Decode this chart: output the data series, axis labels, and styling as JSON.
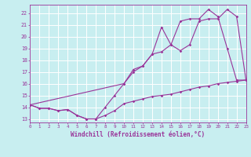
{
  "xlabel": "Windchill (Refroidissement éolien,°C)",
  "bg_color": "#c8eef0",
  "line_color": "#993399",
  "grid_color": "#ffffff",
  "xmin": 0,
  "xmax": 23,
  "ymin": 12.7,
  "ymax": 22.7,
  "yticks": [
    13,
    14,
    15,
    16,
    17,
    18,
    19,
    20,
    21,
    22
  ],
  "series1_x": [
    0,
    1,
    2,
    3,
    4,
    5,
    6,
    7,
    8,
    9,
    10,
    11,
    12,
    13,
    14,
    15,
    16,
    17,
    18,
    19,
    20,
    21,
    22,
    23
  ],
  "series1_y": [
    14.2,
    13.9,
    13.9,
    13.7,
    13.8,
    13.3,
    13.0,
    13.0,
    14.0,
    15.0,
    16.0,
    17.2,
    17.5,
    18.5,
    20.8,
    19.3,
    18.8,
    19.3,
    21.3,
    21.5,
    21.5,
    22.3,
    21.7,
    16.3
  ],
  "series2_x": [
    0,
    10,
    11,
    12,
    13,
    14,
    15,
    16,
    17,
    18,
    19,
    20,
    21,
    22,
    23
  ],
  "series2_y": [
    14.2,
    16.0,
    17.0,
    17.5,
    18.5,
    18.7,
    19.3,
    21.3,
    21.5,
    21.5,
    22.3,
    21.7,
    19.0,
    16.3,
    16.3
  ],
  "series3_x": [
    0,
    1,
    2,
    3,
    4,
    5,
    6,
    7,
    8,
    9,
    10,
    11,
    12,
    13,
    14,
    15,
    16,
    17,
    18,
    19,
    20,
    21,
    22,
    23
  ],
  "series3_y": [
    14.2,
    13.9,
    13.9,
    13.7,
    13.8,
    13.3,
    13.0,
    13.0,
    13.3,
    13.7,
    14.3,
    14.5,
    14.7,
    14.9,
    15.0,
    15.1,
    15.3,
    15.5,
    15.7,
    15.8,
    16.0,
    16.1,
    16.2,
    16.3
  ]
}
